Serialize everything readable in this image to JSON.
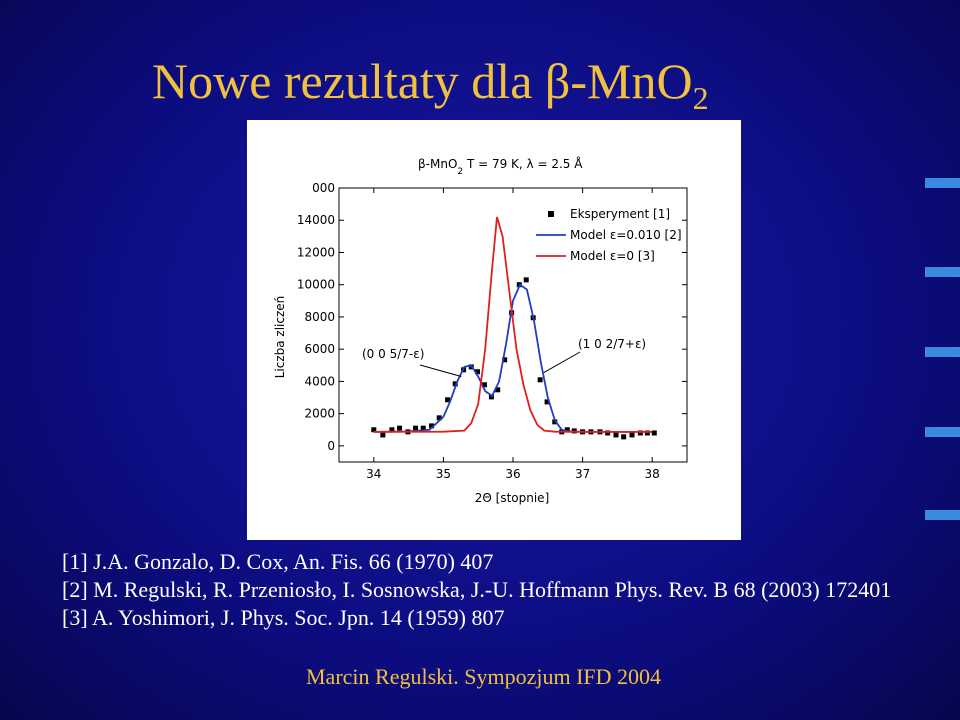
{
  "slide_title": {
    "main": "Nowe rezultaty dla β-MnO",
    "sub": "2"
  },
  "chart_data": {
    "type": "line",
    "title": {
      "formula": "β-MnO",
      "sub": "2",
      "rest": " T = 79 K, λ = 2.5 Å"
    },
    "x_label": "2Θ [stopnie]",
    "y_label": "Liczba zliczeń",
    "xlim": [
      33.5,
      38.5
    ],
    "xticks": [
      34,
      35,
      36,
      37,
      38
    ],
    "ylim": [
      -1000,
      16000
    ],
    "yticks": [
      0,
      2000,
      4000,
      6000,
      8000,
      10000,
      12000,
      14000,
      {
        "value": 16000,
        "label": "000"
      }
    ],
    "legend": "top-right",
    "annotations": [
      {
        "text": "(0 0 5/7-ε)",
        "x": 35.3,
        "y": 4800
      },
      {
        "text": "(1 0 2/7+ε)",
        "x": 36.4,
        "y": 4300
      }
    ],
    "series": [
      {
        "name": "Eksperyment [1]",
        "color": "#000000",
        "style": "markers",
        "x": [
          34.0,
          34.13,
          34.26,
          34.37,
          34.49,
          34.6,
          34.71,
          34.83,
          34.94,
          35.06,
          35.17,
          35.29,
          35.4,
          35.49,
          35.59,
          35.69,
          35.78,
          35.88,
          35.98,
          36.09,
          36.19,
          36.29,
          36.39,
          36.49,
          36.6,
          36.7,
          36.78,
          36.88,
          37.0,
          37.12,
          37.25,
          37.36,
          37.48,
          37.59,
          37.71,
          37.83,
          37.93,
          38.03
        ],
        "values": [
          1000,
          680,
          1000,
          1100,
          870,
          1100,
          1100,
          1240,
          1740,
          2860,
          3850,
          4720,
          4900,
          4600,
          3790,
          3040,
          3480,
          5340,
          8260,
          10000,
          10300,
          7950,
          4100,
          2730,
          1490,
          870,
          1000,
          930,
          870,
          870,
          870,
          800,
          680,
          560,
          680,
          800,
          800,
          800
        ]
      },
      {
        "name": "Model ε=0.010 [2]",
        "color": "#1f3fbf",
        "style": "line",
        "x": [
          34.0,
          34.5,
          34.8,
          35.0,
          35.1,
          35.2,
          35.3,
          35.4,
          35.5,
          35.6,
          35.7,
          35.8,
          35.9,
          36.0,
          36.1,
          36.2,
          36.3,
          36.4,
          36.5,
          36.6,
          36.7,
          36.8,
          37.0,
          37.5,
          38.0
        ],
        "values": [
          870,
          890,
          1000,
          1800,
          2800,
          4000,
          4900,
          5000,
          4300,
          3400,
          3100,
          4000,
          6300,
          9000,
          10000,
          9700,
          7800,
          5200,
          3000,
          1600,
          1000,
          900,
          870,
          870,
          870
        ]
      },
      {
        "name": "Model ε=0 [3]",
        "color": "#e0201a",
        "style": "line",
        "x": [
          34.0,
          35.0,
          35.3,
          35.4,
          35.5,
          35.6,
          35.7,
          35.77,
          35.85,
          35.95,
          36.05,
          36.15,
          36.25,
          36.35,
          36.45,
          36.6,
          37.0,
          38.0
        ],
        "values": [
          870,
          880,
          950,
          1400,
          2600,
          6000,
          11000,
          14200,
          13000,
          9500,
          6000,
          3800,
          2200,
          1300,
          950,
          880,
          870,
          870
        ]
      }
    ]
  },
  "references": [
    "[1] J.A. Gonzalo, D. Cox, An. Fis. 66 (1970) 407",
    "[2] M. Regulski, R. Przeniosło, I. Sosnowska, J.-U. Hoffmann Phys. Rev. B 68 (2003) 172401",
    "[3] A. Yoshimori, J. Phys. Soc. Jpn. 14 (1959) 807"
  ],
  "footer": "Marcin Regulski. Sympozjum IFD 2004"
}
